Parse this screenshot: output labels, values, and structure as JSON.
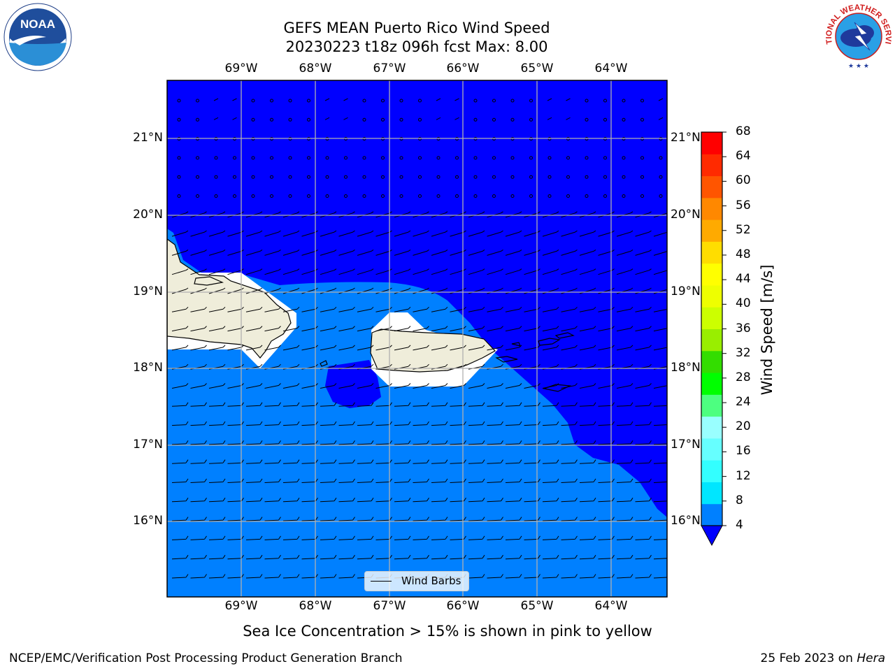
{
  "header": {
    "title_line1": "GEFS MEAN Puerto Rico Wind Speed",
    "title_line2": "20230223 t18z 096h fcst   Max: 8.00"
  },
  "map": {
    "lon_labels": [
      "69°W",
      "68°W",
      "67°W",
      "66°W",
      "65°W",
      "64°W"
    ],
    "lat_labels": [
      "21°N",
      "20°N",
      "19°N",
      "18°N",
      "17°N",
      "16°N"
    ],
    "legend_label": "Wind Barbs",
    "colors": {
      "below_4": "#0000ff",
      "4_to_8": "#0080ff",
      "land": "#efedda",
      "gridline": "#b0b0b0"
    }
  },
  "colorbar": {
    "title": "Wind Speed [m/s]",
    "tick_labels": [
      "68",
      "64",
      "60",
      "56",
      "52",
      "48",
      "44",
      "40",
      "36",
      "32",
      "28",
      "24",
      "20",
      "16",
      "12",
      "8",
      "4"
    ],
    "colors": [
      "#0000ff",
      "#0080ff",
      "#00e6ff",
      "#33ffff",
      "#66ffff",
      "#99ffff",
      "#4dff80",
      "#00ff00",
      "#33dd00",
      "#99ee00",
      "#ccff00",
      "#eeff00",
      "#ffff00",
      "#ffdd00",
      "#ffaa00",
      "#ff8800",
      "#ff5500",
      "#ff2a00",
      "#ff0000"
    ]
  },
  "footer": {
    "sea_ice_note": "Sea Ice Concentration > 15% is shown in pink to yellow",
    "branch": "NCEP/EMC/Verification Post Processing Product Generation Branch",
    "date": "25 Feb 2023 on ",
    "machine": "Hera"
  },
  "logos": {
    "left_text": "NOAA",
    "right_text": "NATIONAL WEATHER SERVICE"
  }
}
